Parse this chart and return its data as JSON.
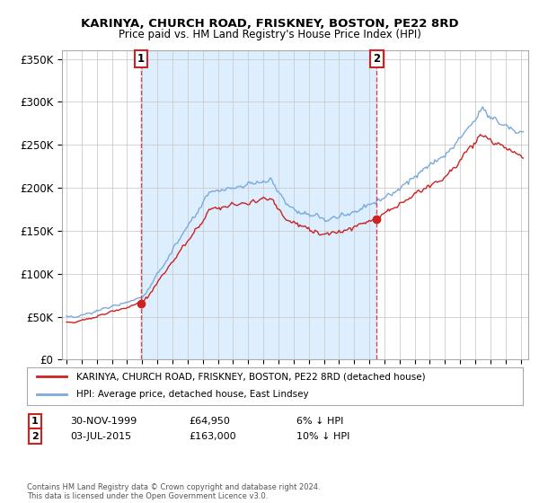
{
  "title": "KARINYA, CHURCH ROAD, FRISKNEY, BOSTON, PE22 8RD",
  "subtitle": "Price paid vs. HM Land Registry's House Price Index (HPI)",
  "ylim": [
    0,
    360000
  ],
  "yticks": [
    0,
    50000,
    100000,
    150000,
    200000,
    250000,
    300000,
    350000
  ],
  "ytick_labels": [
    "£0",
    "£50K",
    "£100K",
    "£150K",
    "£200K",
    "£250K",
    "£300K",
    "£350K"
  ],
  "xlim_start": 1994.7,
  "xlim_end": 2025.5,
  "sale1_x": 1999.92,
  "sale1_y": 64950,
  "sale1_label": "1",
  "sale1_date": "30-NOV-1999",
  "sale1_price": "£64,950",
  "sale1_hpi": "6% ↓ HPI",
  "sale2_x": 2015.5,
  "sale2_y": 163000,
  "sale2_label": "2",
  "sale2_date": "03-JUL-2015",
  "sale2_price": "£163,000",
  "sale2_hpi": "10% ↓ HPI",
  "line_color_house": "#cc2222",
  "line_color_hpi": "#7aaadd",
  "shade_color": "#ddeeff",
  "background_color": "#ffffff",
  "grid_color": "#cccccc",
  "legend_label_house": "KARINYA, CHURCH ROAD, FRISKNEY, BOSTON, PE22 8RD (detached house)",
  "legend_label_hpi": "HPI: Average price, detached house, East Lindsey",
  "footer": "Contains HM Land Registry data © Crown copyright and database right 2024.\nThis data is licensed under the Open Government Licence v3.0."
}
